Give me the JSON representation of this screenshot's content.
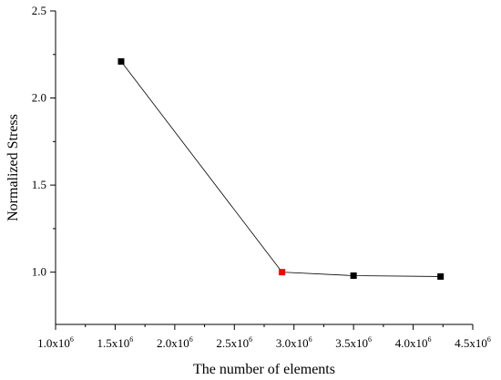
{
  "chart_data": {
    "type": "line",
    "title": "",
    "xlabel": "The number of elements",
    "ylabel": "Normalized Stress",
    "xlim": [
      1000000,
      4500000
    ],
    "ylim": [
      0.7,
      2.5
    ],
    "x_ticks": [
      {
        "value": 1000000,
        "mantissa": "1.0x10",
        "exp": "6"
      },
      {
        "value": 1500000,
        "mantissa": "1.5x10",
        "exp": "6"
      },
      {
        "value": 2000000,
        "mantissa": "2.0x10",
        "exp": "6"
      },
      {
        "value": 2500000,
        "mantissa": "2.5x10",
        "exp": "6"
      },
      {
        "value": 3000000,
        "mantissa": "3.0x10",
        "exp": "6"
      },
      {
        "value": 3500000,
        "mantissa": "3.5x10",
        "exp": "6"
      },
      {
        "value": 4000000,
        "mantissa": "4.0x10",
        "exp": "6"
      },
      {
        "value": 4500000,
        "mantissa": "4.5x10",
        "exp": "6"
      }
    ],
    "y_ticks": [
      {
        "value": 1.0,
        "label": "1.0"
      },
      {
        "value": 1.5,
        "label": "1.5"
      },
      {
        "value": 2.0,
        "label": "2.0"
      },
      {
        "value": 2.5,
        "label": "2.5"
      }
    ],
    "grid": false,
    "series": [
      {
        "x": [
          1550000,
          2900000,
          3500000,
          4230000
        ],
        "y": [
          2.21,
          1.0,
          0.98,
          0.975
        ],
        "point_colors": [
          "#000000",
          "#ff0000",
          "#000000",
          "#000000"
        ],
        "line_color": "#000000"
      }
    ]
  }
}
